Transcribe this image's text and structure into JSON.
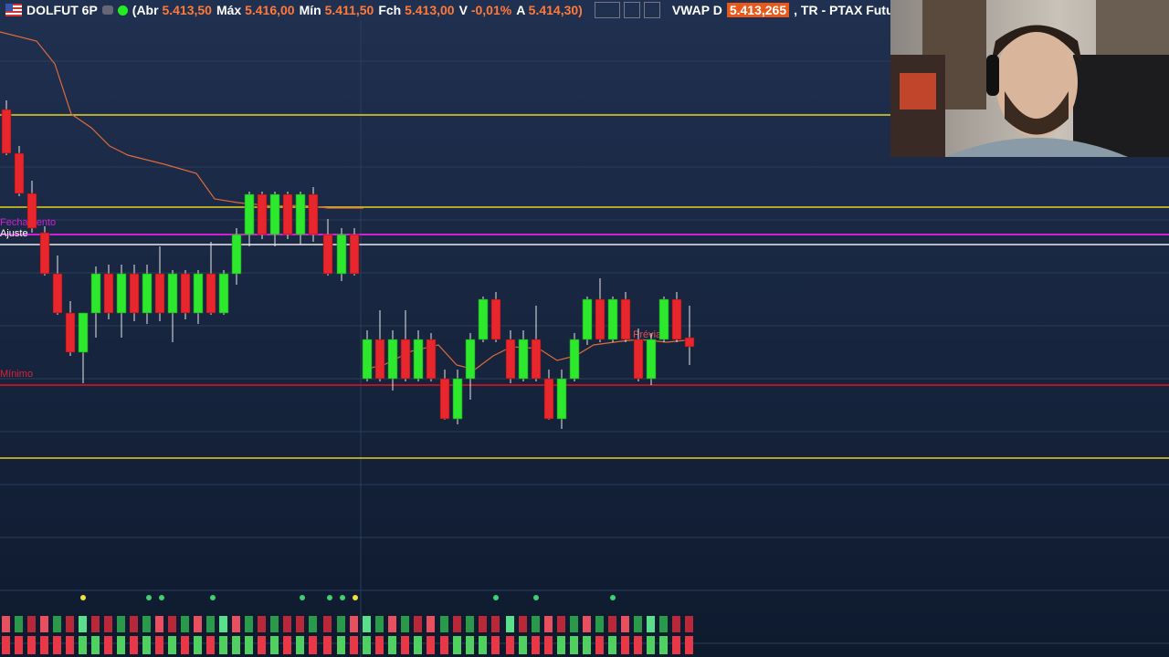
{
  "header": {
    "symbol": "DOLFUT 6P",
    "fields": [
      {
        "label": "(Abr",
        "value": "5.413,50"
      },
      {
        "label": "Máx",
        "value": "5.416,00"
      },
      {
        "label": "Mín",
        "value": "5.411,50"
      },
      {
        "label": "Fch",
        "value": "5.413,00"
      },
      {
        "label": "V",
        "value": "-0,01%"
      },
      {
        "label": "A",
        "value": "5.414,30)"
      }
    ],
    "vwap_label": "VWAP D",
    "vwap_value": "5.413,265",
    "tail": ", TR - PTAX Futur"
  },
  "chart_labels": {
    "close": "Fechamento",
    "adjust": "Ajuste",
    "minimum": "Mínimo",
    "preview": "Prévia"
  }
}
